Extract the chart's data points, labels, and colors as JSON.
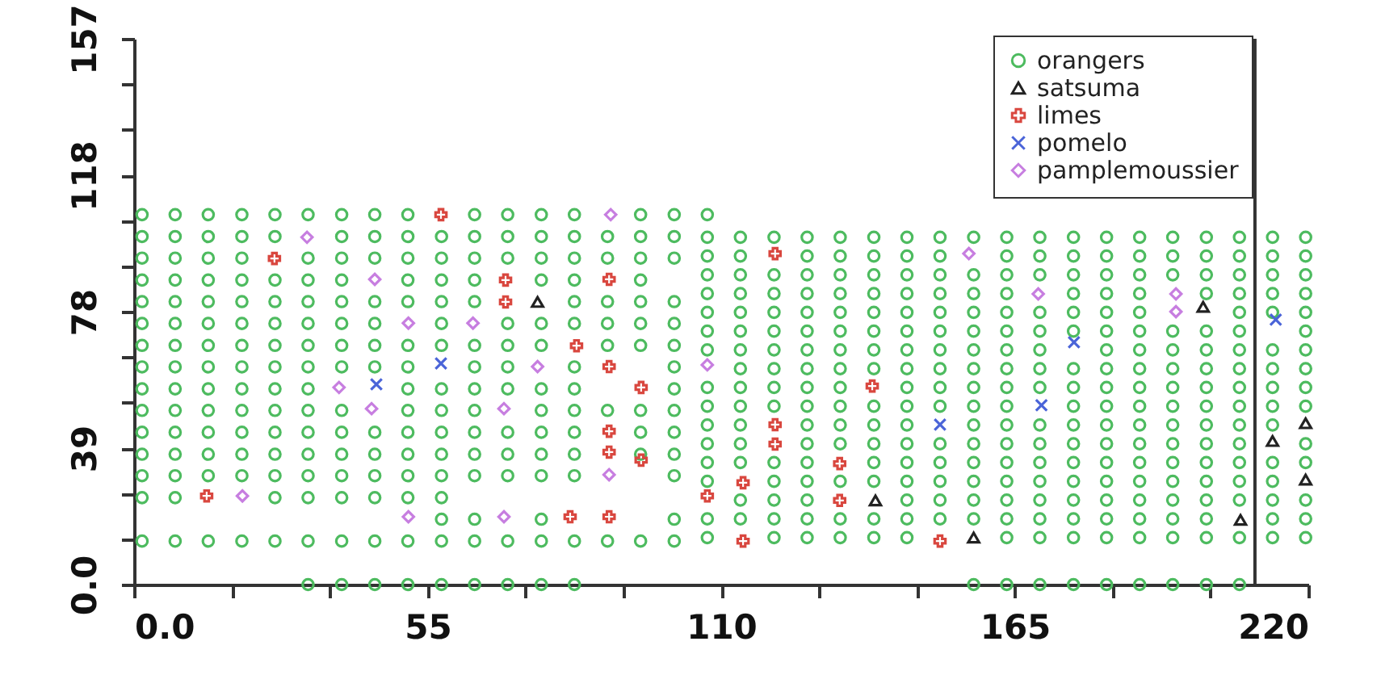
{
  "chart_data": {
    "type": "scatter",
    "xlim": [
      0,
      220
    ],
    "ylim": [
      0,
      157
    ],
    "xticks": [
      {
        "value": 0,
        "label": "0.0"
      },
      {
        "value": 18.33,
        "label": null
      },
      {
        "value": 36.67,
        "label": null
      },
      55,
      {
        "value": 73.33,
        "label": null
      },
      {
        "value": 91.67,
        "label": null
      },
      110,
      {
        "value": 128.33,
        "label": null
      },
      {
        "value": 146.67,
        "label": null
      },
      165,
      {
        "value": 183.33,
        "label": null
      },
      {
        "value": 201.67,
        "label": null
      },
      220
    ],
    "yticks": [
      {
        "value": 0,
        "label": "0.0"
      },
      {
        "value": 13.08,
        "label": null
      },
      {
        "value": 26.17,
        "label": null
      },
      {
        "value": 39.25,
        "label": "39"
      },
      {
        "value": 52.33,
        "label": null
      },
      {
        "value": 65.42,
        "label": null
      },
      {
        "value": 78.5,
        "label": "78"
      },
      {
        "value": 91.58,
        "label": null
      },
      {
        "value": 104.67,
        "label": null
      },
      {
        "value": 117.75,
        "label": "118"
      },
      {
        "value": 130.83,
        "label": null
      },
      {
        "value": 143.92,
        "label": null
      },
      157
    ],
    "legend": "top right",
    "ref_lines": [
      {
        "axis": "x",
        "value": 210,
        "color": "#333333"
      }
    ],
    "series": [
      {
        "name": "orangers",
        "color": "#4dbb5f",
        "marker": "circle",
        "x": [
          1.5,
          7.7,
          13.9,
          20.2,
          26.4,
          32.6,
          38.9,
          45.1,
          51.3,
          63.8,
          70.0,
          76.3,
          82.5,
          94.9,
          101.2,
          1.5,
          7.7,
          13.9,
          20.2,
          26.4,
          38.9,
          45.1,
          51.3,
          57.6,
          63.8,
          70.0,
          76.3,
          82.5,
          88.7,
          94.9,
          101.2,
          1.5,
          7.7,
          13.9,
          20.2,
          32.6,
          38.9,
          45.1,
          51.3,
          57.6,
          63.8,
          70.0,
          76.3,
          82.5,
          88.7,
          94.9,
          101.2,
          1.5,
          7.7,
          13.9,
          20.2,
          26.4,
          32.6,
          38.9,
          51.3,
          57.6,
          63.8,
          76.3,
          82.5,
          94.9,
          1.5,
          7.7,
          13.9,
          20.2,
          26.4,
          32.6,
          38.9,
          45.1,
          51.3,
          57.6,
          63.8,
          82.5,
          88.7,
          94.9,
          101.2,
          1.5,
          7.7,
          13.9,
          20.2,
          26.4,
          32.6,
          38.9,
          45.1,
          57.6,
          70.0,
          76.3,
          82.5,
          88.7,
          94.9,
          101.2,
          1.5,
          7.7,
          13.9,
          20.2,
          26.4,
          32.6,
          38.9,
          45.1,
          51.3,
          57.6,
          63.8,
          70.0,
          76.3,
          88.7,
          94.9,
          101.2,
          1.5,
          7.7,
          13.9,
          20.2,
          26.4,
          32.6,
          38.9,
          45.1,
          51.3,
          63.8,
          70.0,
          82.5,
          101.2,
          1.5,
          7.7,
          13.9,
          20.2,
          26.4,
          32.6,
          51.3,
          57.6,
          63.8,
          70.0,
          76.3,
          82.5,
          101.2,
          1.5,
          7.7,
          13.9,
          20.2,
          26.4,
          32.6,
          38.9,
          51.3,
          57.6,
          63.8,
          76.3,
          82.5,
          88.7,
          94.9,
          101.2,
          1.5,
          7.7,
          13.9,
          20.2,
          26.4,
          32.6,
          38.9,
          45.1,
          51.3,
          57.6,
          63.8,
          70.0,
          76.3,
          82.5,
          94.9,
          101.2,
          1.5,
          7.7,
          13.9,
          20.2,
          26.4,
          32.6,
          38.9,
          45.1,
          51.3,
          57.6,
          63.8,
          70.0,
          76.3,
          82.5,
          94.9,
          101.2,
          1.5,
          7.7,
          13.9,
          20.2,
          26.4,
          32.6,
          38.9,
          45.1,
          51.3,
          57.6,
          63.8,
          70.0,
          76.3,
          82.5,
          101.2,
          1.5,
          7.7,
          26.4,
          32.6,
          38.9,
          45.1,
          51.3,
          57.6,
          57.6,
          63.8,
          76.3,
          101.2,
          1.5,
          7.7,
          13.9,
          20.2,
          26.4,
          32.6,
          38.9,
          45.1,
          51.3,
          57.6,
          63.8,
          70.0,
          76.3,
          82.5,
          88.7,
          94.9,
          101.2,
          32.6,
          38.9,
          45.1,
          51.3,
          57.6,
          63.8,
          70.0,
          76.3,
          82.5,
          107.4,
          119.9,
          126.1,
          132.3,
          138.6,
          144.8,
          163.5,
          169.7,
          176.0,
          182.2,
          188.4,
          194.6,
          200.9,
          207.1,
          213.3,
          219.5,
          107.4,
          113.6,
          119.9,
          126.1,
          132.3,
          138.6,
          144.8,
          151.0,
          157.3,
          163.5,
          169.7,
          176.0,
          182.2,
          188.4,
          194.6,
          200.9,
          213.3,
          219.5,
          113.6,
          119.9,
          126.1,
          144.8,
          151.0,
          157.3,
          163.5,
          169.7,
          176.0,
          182.2,
          188.4,
          194.6,
          200.9,
          207.1,
          213.3,
          219.5,
          107.4,
          119.9,
          126.1,
          132.3,
          138.6,
          144.8,
          151.0,
          157.3,
          163.5,
          169.7,
          176.0,
          182.2,
          188.4,
          194.6,
          200.9,
          207.1,
          213.3,
          107.4,
          113.6,
          119.9,
          126.1,
          138.6,
          144.8,
          151.0,
          157.3,
          163.5,
          169.7,
          176.0,
          182.2,
          188.4,
          194.6,
          200.9,
          207.1,
          213.3,
          219.5,
          107.4,
          113.6,
          126.1,
          132.3,
          138.6,
          144.8,
          151.0,
          157.3,
          163.5,
          169.7,
          176.0,
          182.2,
          188.4,
          194.6,
          200.9,
          207.1,
          219.5,
          107.4,
          113.6,
          126.1,
          132.3,
          138.6,
          144.8,
          157.3,
          163.5,
          169.7,
          176.0,
          182.2,
          188.4,
          194.6,
          200.9,
          207.1,
          213.3,
          107.4,
          113.6,
          119.9,
          126.1,
          132.3,
          138.6,
          144.8,
          151.0,
          157.3,
          163.5,
          176.0,
          182.2,
          188.4,
          194.6,
          200.9,
          207.1,
          213.3,
          219.5,
          107.4,
          113.6,
          119.9,
          126.1,
          132.3,
          144.8,
          151.0,
          157.3,
          163.5,
          169.7,
          176.0,
          182.2,
          188.4,
          194.6,
          200.9,
          207.1,
          213.3,
          219.5,
          113.6,
          119.9,
          126.1,
          132.3,
          138.6,
          144.8,
          151.0,
          157.3,
          163.5,
          169.7,
          176.0,
          182.2,
          188.4,
          194.6,
          200.9,
          207.1,
          213.3,
          219.5,
          107.4,
          113.6,
          119.9,
          126.1,
          132.3,
          138.6,
          144.8,
          151.0,
          157.3,
          163.5,
          169.7,
          182.2,
          188.4,
          194.6,
          200.9,
          207.1,
          213.3,
          219.5,
          107.4,
          113.6,
          119.9,
          126.1,
          132.3,
          138.6,
          144.8,
          151.0,
          157.3,
          163.5,
          169.7,
          176.0,
          182.2,
          188.4,
          194.6,
          200.9,
          207.1,
          219.5,
          107.4,
          113.6,
          119.9,
          126.1,
          132.3,
          138.6,
          144.8,
          151.0,
          157.3,
          163.5,
          169.7,
          176.0,
          182.2,
          188.4,
          207.1,
          213.3,
          219.5,
          107.4,
          113.6,
          119.9,
          126.1,
          132.3,
          138.6,
          144.8,
          151.0,
          157.3,
          163.5,
          176.0,
          182.2,
          188.4,
          200.9,
          207.1,
          213.3,
          219.5,
          107.4,
          113.6,
          119.9,
          126.1,
          132.3,
          138.6,
          144.8,
          151.0,
          157.3,
          163.5,
          169.7,
          176.0,
          182.2,
          188.4,
          194.6,
          200.9,
          207.1,
          213.3,
          219.5,
          107.4,
          113.6,
          126.1,
          132.3,
          138.6,
          144.8,
          151.0,
          163.5,
          169.7,
          176.0,
          182.2,
          188.4,
          194.6,
          200.9,
          207.1,
          213.3,
          219.5,
          107.4,
          113.6,
          119.9,
          126.1,
          132.3,
          138.6,
          144.8,
          151.0,
          157.3,
          163.5,
          169.7,
          176.0,
          182.2,
          188.4,
          194.6,
          200.9,
          207.1,
          213.3,
          219.5,
          107.4,
          157.3,
          163.5,
          169.7,
          176.0,
          182.2,
          188.4,
          194.6,
          200.9,
          207.1
        ],
        "values": [
          106.4,
          106.4,
          106.4,
          106.4,
          106.4,
          106.4,
          106.4,
          106.4,
          106.4,
          106.4,
          106.4,
          106.4,
          106.4,
          106.4,
          106.4,
          100.1,
          100.1,
          100.1,
          100.1,
          100.1,
          100.1,
          100.1,
          100.1,
          100.1,
          100.1,
          100.1,
          100.1,
          100.1,
          100.1,
          100.1,
          100.1,
          93.9,
          93.9,
          93.9,
          93.9,
          93.9,
          93.9,
          93.9,
          93.9,
          93.9,
          93.9,
          93.9,
          93.9,
          93.9,
          93.9,
          93.9,
          93.9,
          87.6,
          87.6,
          87.6,
          87.6,
          87.6,
          87.6,
          87.6,
          87.6,
          87.6,
          87.6,
          87.6,
          87.6,
          87.6,
          81.4,
          81.4,
          81.4,
          81.4,
          81.4,
          81.4,
          81.4,
          81.4,
          81.4,
          81.4,
          81.4,
          81.4,
          81.4,
          81.4,
          81.4,
          75.1,
          75.1,
          75.1,
          75.1,
          75.1,
          75.1,
          75.1,
          75.1,
          75.1,
          75.1,
          75.1,
          75.1,
          75.1,
          75.1,
          75.1,
          68.8,
          68.8,
          68.8,
          68.8,
          68.8,
          68.8,
          68.8,
          68.8,
          68.8,
          68.8,
          68.8,
          68.8,
          68.8,
          68.8,
          68.8,
          68.8,
          62.6,
          62.6,
          62.6,
          62.6,
          62.6,
          62.6,
          62.6,
          62.6,
          62.6,
          62.6,
          62.6,
          62.6,
          62.6,
          56.3,
          56.3,
          56.3,
          56.3,
          56.3,
          56.3,
          56.3,
          56.3,
          56.3,
          56.3,
          56.3,
          56.3,
          56.3,
          50.1,
          50.1,
          50.1,
          50.1,
          50.1,
          50.1,
          50.1,
          50.1,
          50.1,
          50.1,
          50.1,
          50.1,
          50.1,
          50.1,
          50.1,
          43.8,
          43.8,
          43.8,
          43.8,
          43.8,
          43.8,
          43.8,
          43.8,
          43.8,
          43.8,
          43.8,
          43.8,
          43.8,
          43.8,
          43.8,
          43.8,
          37.5,
          37.5,
          37.5,
          37.5,
          37.5,
          37.5,
          37.5,
          37.5,
          37.5,
          37.5,
          37.5,
          37.5,
          37.5,
          37.5,
          37.5,
          37.5,
          31.3,
          31.3,
          31.3,
          31.3,
          31.3,
          31.3,
          31.3,
          31.3,
          31.3,
          31.3,
          31.3,
          31.3,
          31.3,
          31.3,
          31.3,
          25.0,
          25.0,
          25.0,
          25.0,
          25.0,
          25.0,
          25.0,
          25.0,
          18.8,
          18.8,
          18.8,
          18.8,
          12.5,
          12.5,
          12.5,
          12.5,
          12.5,
          12.5,
          12.5,
          12.5,
          12.5,
          12.5,
          12.5,
          12.5,
          12.5,
          12.5,
          12.5,
          12.5,
          12.5,
          0,
          0,
          0,
          0,
          0,
          0,
          0,
          0,
          0,
          13.5,
          13.5,
          13.5,
          13.5,
          13.5,
          13.5,
          13.5,
          13.5,
          13.5,
          13.5,
          13.5,
          13.5,
          13.5,
          13.5,
          13.5,
          13.5,
          18.9,
          18.9,
          18.9,
          18.9,
          18.9,
          18.9,
          18.9,
          18.9,
          18.9,
          18.9,
          18.9,
          18.9,
          18.9,
          18.9,
          18.9,
          18.9,
          18.9,
          18.9,
          24.3,
          24.3,
          24.3,
          24.3,
          24.3,
          24.3,
          24.3,
          24.3,
          24.3,
          24.3,
          24.3,
          24.3,
          24.3,
          24.3,
          24.3,
          24.3,
          29.7,
          29.7,
          29.7,
          29.7,
          29.7,
          29.7,
          29.7,
          29.7,
          29.7,
          29.7,
          29.7,
          29.7,
          29.7,
          29.7,
          29.7,
          29.7,
          29.7,
          35.1,
          35.1,
          35.1,
          35.1,
          35.1,
          35.1,
          35.1,
          35.1,
          35.1,
          35.1,
          35.1,
          35.1,
          35.1,
          35.1,
          35.1,
          35.1,
          35.1,
          35.1,
          40.5,
          40.5,
          40.5,
          40.5,
          40.5,
          40.5,
          40.5,
          40.5,
          40.5,
          40.5,
          40.5,
          40.5,
          40.5,
          40.5,
          40.5,
          40.5,
          40.5,
          45.9,
          45.9,
          45.9,
          45.9,
          45.9,
          45.9,
          45.9,
          45.9,
          45.9,
          45.9,
          45.9,
          45.9,
          45.9,
          45.9,
          45.9,
          45.9,
          51.3,
          51.3,
          51.3,
          51.3,
          51.3,
          51.3,
          51.3,
          51.3,
          51.3,
          51.3,
          51.3,
          51.3,
          51.3,
          51.3,
          51.3,
          51.3,
          51.3,
          51.3,
          56.7,
          56.7,
          56.7,
          56.7,
          56.7,
          56.7,
          56.7,
          56.7,
          56.7,
          56.7,
          56.7,
          56.7,
          56.7,
          56.7,
          56.7,
          56.7,
          56.7,
          56.7,
          62.1,
          62.1,
          62.1,
          62.1,
          62.1,
          62.1,
          62.1,
          62.1,
          62.1,
          62.1,
          62.1,
          62.1,
          62.1,
          62.1,
          62.1,
          62.1,
          62.1,
          62.1,
          67.5,
          67.5,
          67.5,
          67.5,
          67.5,
          67.5,
          67.5,
          67.5,
          67.5,
          67.5,
          67.5,
          67.5,
          67.5,
          67.5,
          67.5,
          67.5,
          67.5,
          67.5,
          72.9,
          72.9,
          72.9,
          72.9,
          72.9,
          72.9,
          72.9,
          72.9,
          72.9,
          72.9,
          72.9,
          72.9,
          72.9,
          72.9,
          72.9,
          72.9,
          72.9,
          72.9,
          78.3,
          78.3,
          78.3,
          78.3,
          78.3,
          78.3,
          78.3,
          78.3,
          78.3,
          78.3,
          78.3,
          78.3,
          78.3,
          78.3,
          78.3,
          78.3,
          78.3,
          83.7,
          83.7,
          83.7,
          83.7,
          83.7,
          83.7,
          83.7,
          83.7,
          83.7,
          83.7,
          83.7,
          83.7,
          83.7,
          83.7,
          83.7,
          83.7,
          83.7,
          89.1,
          89.1,
          89.1,
          89.1,
          89.1,
          89.1,
          89.1,
          89.1,
          89.1,
          89.1,
          89.1,
          89.1,
          89.1,
          89.1,
          89.1,
          89.1,
          89.1,
          89.1,
          89.1,
          94.5,
          94.5,
          94.5,
          94.5,
          94.5,
          94.5,
          94.5,
          94.5,
          94.5,
          94.5,
          94.5,
          94.5,
          94.5,
          94.5,
          94.5,
          94.5,
          94.5,
          99.9,
          99.9,
          99.9,
          99.9,
          99.9,
          99.9,
          99.9,
          99.9,
          99.9,
          99.9,
          99.9,
          99.9,
          99.9,
          99.9,
          99.9,
          99.9,
          99.9,
          99.9,
          99.9,
          106.4,
          0,
          0,
          0,
          0,
          0,
          0,
          0,
          0,
          0
        ]
      },
      {
        "name": "satsuma",
        "color": "#222222",
        "marker": "triangle",
        "x": [
          75.6,
          200.3,
          138.9,
          157.3,
          207.3,
          213.3,
          219.5,
          219.5
        ],
        "values": [
          81.3,
          79.9,
          24.2,
          13.5,
          18.6,
          41.3,
          46.4,
          30.2
        ]
      },
      {
        "name": "limes",
        "color": "#d9473f",
        "marker": "cross",
        "x": [
          57.5,
          26.3,
          69.6,
          69.6,
          89.0,
          120.1,
          13.6,
          82.9,
          89.0,
          95.0,
          89.0,
          89.0,
          95.0,
          81.7,
          89.0,
          107.4,
          114.1,
          114.1,
          120.1,
          120.1,
          132.2,
          132.2,
          138.3,
          151.0
        ],
        "values": [
          106.4,
          93.8,
          87.6,
          81.3,
          87.8,
          95.2,
          25.5,
          68.7,
          62.7,
          56.7,
          44.1,
          38.1,
          35.8,
          19.5,
          19.5,
          25.5,
          29.3,
          12.5,
          46.0,
          40.4,
          34.8,
          24.2,
          57.1,
          12.5
        ]
      },
      {
        "name": "pomelo",
        "color": "#4a64d8",
        "marker": "x",
        "x": [
          45.4,
          57.5,
          151.0,
          170.0,
          176.1,
          213.9
        ],
        "values": [
          57.6,
          63.6,
          46.0,
          51.6,
          69.7,
          76.2
        ]
      },
      {
        "name": "pamplemoussier",
        "color": "#c77ee0",
        "marker": "diamond",
        "x": [
          89.3,
          32.4,
          45.1,
          51.4,
          63.5,
          75.6,
          38.4,
          44.5,
          69.3,
          89.0,
          20.3,
          51.4,
          69.3,
          107.4,
          156.4,
          169.4,
          195.2,
          195.2
        ],
        "values": [
          106.4,
          99.9,
          87.8,
          75.2,
          75.2,
          62.7,
          56.7,
          50.6,
          50.6,
          31.6,
          25.5,
          19.5,
          19.5,
          63.2,
          95.2,
          83.6,
          83.6,
          78.5
        ]
      }
    ]
  }
}
